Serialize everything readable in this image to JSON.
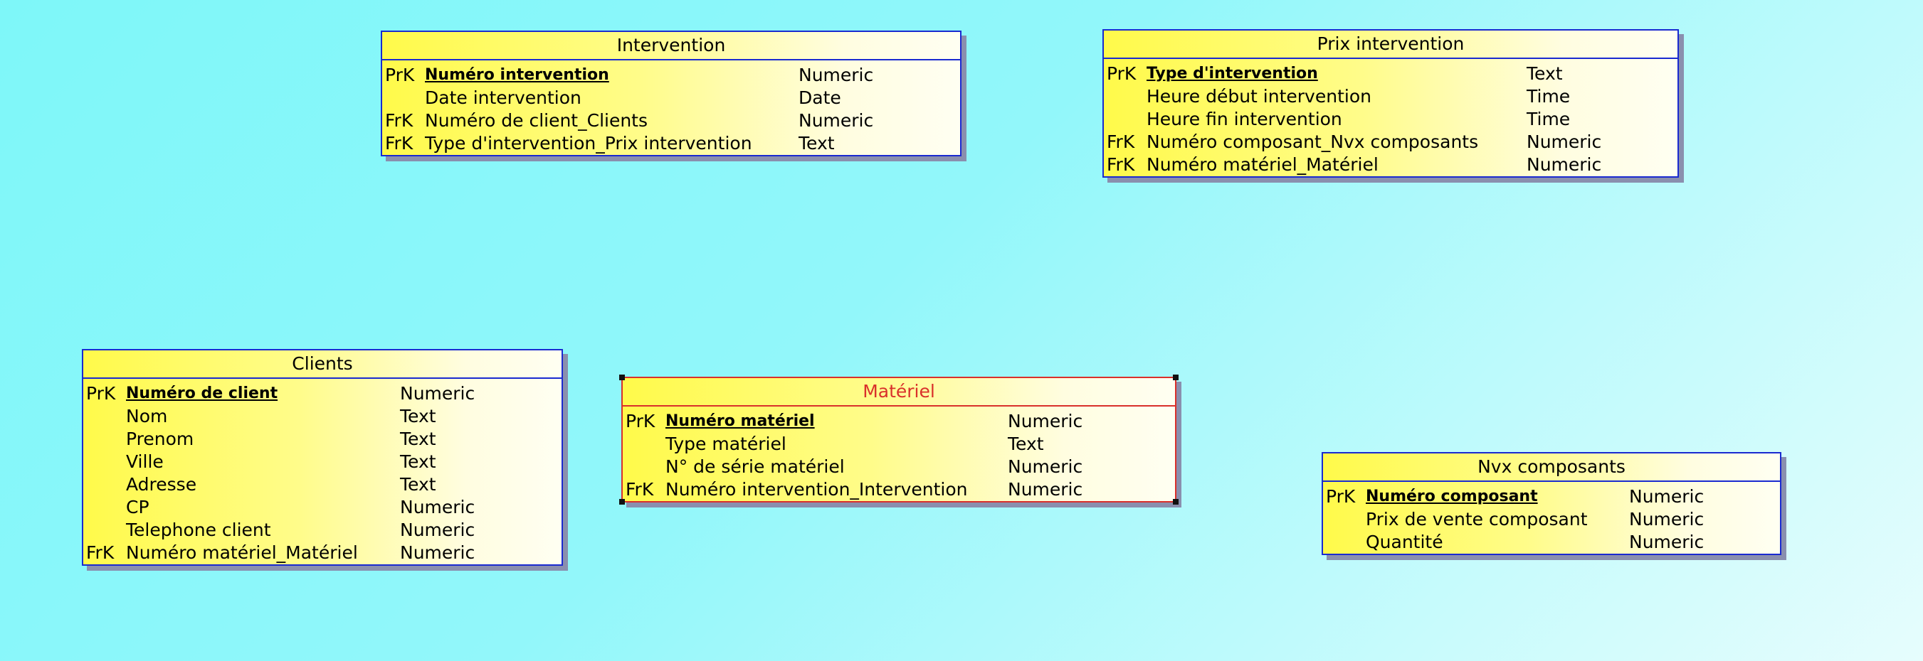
{
  "tables": [
    {
      "id": "intervention",
      "title": "Intervention",
      "rows": [
        {
          "key": "PrK",
          "name": "Numéro intervention",
          "type": "Numeric",
          "pk": true
        },
        {
          "key": "",
          "name": "Date intervention",
          "type": "Date",
          "pk": false
        },
        {
          "key": "FrK",
          "name": "Numéro de client_Clients",
          "type": "Numeric",
          "pk": false
        },
        {
          "key": "FrK",
          "name": "Type d'intervention_Prix intervention",
          "type": "Text",
          "pk": false
        }
      ]
    },
    {
      "id": "prix-intervention",
      "title": "Prix intervention",
      "rows": [
        {
          "key": "PrK",
          "name": "Type d'intervention",
          "type": "Text",
          "pk": true
        },
        {
          "key": "",
          "name": "Heure début intervention",
          "type": "Time",
          "pk": false
        },
        {
          "key": "",
          "name": "Heure fin intervention",
          "type": "Time",
          "pk": false
        },
        {
          "key": "FrK",
          "name": "Numéro composant_Nvx composants",
          "type": "Numeric",
          "pk": false
        },
        {
          "key": "FrK",
          "name": "Numéro matériel_Matériel",
          "type": "Numeric",
          "pk": false
        }
      ]
    },
    {
      "id": "clients",
      "title": "Clients",
      "rows": [
        {
          "key": "PrK",
          "name": "Numéro de client",
          "type": "Numeric",
          "pk": true
        },
        {
          "key": "",
          "name": "Nom",
          "type": "Text",
          "pk": false
        },
        {
          "key": "",
          "name": "Prenom",
          "type": "Text",
          "pk": false
        },
        {
          "key": "",
          "name": "Ville",
          "type": "Text",
          "pk": false
        },
        {
          "key": "",
          "name": "Adresse",
          "type": "Text",
          "pk": false
        },
        {
          "key": "",
          "name": "CP",
          "type": "Numeric",
          "pk": false
        },
        {
          "key": "",
          "name": "Telephone client",
          "type": "Numeric",
          "pk": false
        },
        {
          "key": "FrK",
          "name": "Numéro matériel_Matériel",
          "type": "Numeric",
          "pk": false
        }
      ]
    },
    {
      "id": "materiel",
      "title": "Matériel",
      "selected": true,
      "rows": [
        {
          "key": "PrK",
          "name": "Numéro matériel",
          "type": "Numeric",
          "pk": true
        },
        {
          "key": "",
          "name": "Type matériel",
          "type": "Text",
          "pk": false
        },
        {
          "key": "",
          "name": "N° de série matériel",
          "type": "Numeric",
          "pk": false
        },
        {
          "key": "FrK",
          "name": "Numéro intervention_Intervention",
          "type": "Numeric",
          "pk": false
        }
      ]
    },
    {
      "id": "nvx-composants",
      "title": "Nvx composants",
      "rows": [
        {
          "key": "PrK",
          "name": "Numéro composant",
          "type": "Numeric",
          "pk": true
        },
        {
          "key": "",
          "name": "Prix de vente composant",
          "type": "Numeric",
          "pk": false
        },
        {
          "key": "",
          "name": "Quantité",
          "type": "Numeric",
          "pk": false
        }
      ]
    }
  ]
}
